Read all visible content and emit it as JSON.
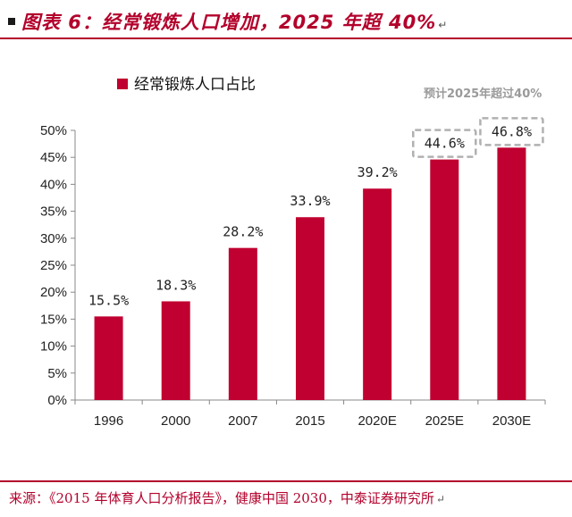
{
  "header": {
    "title": "图表 6：经常锻炼人口增加，2025 年超 40%",
    "return_mark": "↵"
  },
  "footer": {
    "source": "来源：《2015 年体育人口分析报告》，健康中国 2030，中泰证券研究所",
    "return_mark": "↵"
  },
  "colors": {
    "bar": "#c00030",
    "accent": "#b3002b",
    "dashed_box": "#b0b0b0"
  },
  "chart_data": {
    "type": "bar",
    "title": "",
    "xlabel": "",
    "ylabel": "",
    "categories": [
      "1996",
      "2000",
      "2007",
      "2015",
      "2020E",
      "2025E",
      "2030E"
    ],
    "series": [
      {
        "name": "经常锻炼人口占比",
        "values": [
          15.5,
          18.3,
          28.2,
          33.9,
          39.2,
          44.6,
          46.8
        ],
        "labels": [
          "15.5%",
          "18.3%",
          "28.2%",
          "33.9%",
          "39.2%",
          "44.6%",
          "46.8%"
        ]
      }
    ],
    "ylim": [
      0,
      50
    ],
    "yticks": [
      "0%",
      "5%",
      "10%",
      "15%",
      "20%",
      "25%",
      "30%",
      "35%",
      "40%",
      "45%",
      "50%"
    ],
    "grid": false,
    "legend": "top-left",
    "highlighted_categories": [
      "2025E",
      "2030E"
    ],
    "annotation": "预计2025年超过40%"
  }
}
